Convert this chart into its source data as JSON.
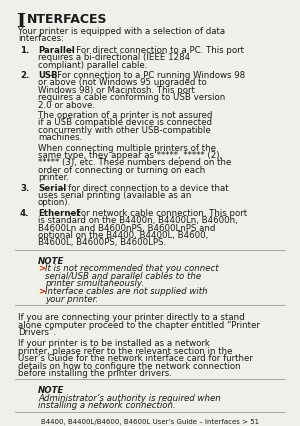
{
  "page_bg": "#f0f0eb",
  "title_big_I": "I",
  "title_rest": "NTERFACES",
  "intro": "Your printer is equipped with a selection of data interfaces:",
  "items": [
    {
      "num": "1.",
      "bold": "Parallel",
      "text": " – For direct connection to a PC. This port requires a bi-directional (IEEE 1284 compliant) parallel cable."
    },
    {
      "num": "2.",
      "bold": "USB",
      "text": " – For connection to a PC running Windows 98 or above (not Windows 95 upgraded to Windows 98) or Macintosh. This port requires a cable conforming to USB version 2.0 or above.",
      "extra": [
        "The operation of a printer is not assured if a USB compatible device is connected concurrently with other USB-compatible machines.",
        "When connecting multiple printers of the same type, they appear as *****, ***** (2), ***** (3), etc. These numbers depend on the order of connecting or turning on each printer."
      ]
    },
    {
      "num": "3.",
      "bold": "Serial",
      "text": " – for direct connection to a device that uses serial printing (available as an option)."
    },
    {
      "num": "4.",
      "bold": "Ethernet",
      "text": " – For network cable connection. This port is standard on the B4400n, B4400Ln, B4600n, B4600Ln and B4600nPS, B4600LnPS and optional on the B4400, B4400L, B4600, B4600L, B4600PS, B4600LPS."
    }
  ],
  "note1_title": "NOTE",
  "note1_bullets": [
    "It is not recommended that you connect serial/USB and parallel cables to the printer simultaneously.",
    "Interface cables are not supplied with your printer."
  ],
  "para1": "If you are connecting your printer directly to a stand alone computer proceed to the chapter entitled “Printer Drivers”.",
  "para2": "If your printer is to be installed as a network printer, please refer to the relevant section in the User’s Guide for the network interface card for further details on how to configure the network connection before installing the printer drivers.",
  "note2_title": "NOTE",
  "note2_text": "Administrator’s authority is required when installing a network connection.",
  "footer": "B4400, B4400L/B4600, B4600L User’s Guide – Interfaces > 51",
  "bullet_color": "#cc2200",
  "text_color": "#1a1a1a",
  "line_color": "#888888"
}
